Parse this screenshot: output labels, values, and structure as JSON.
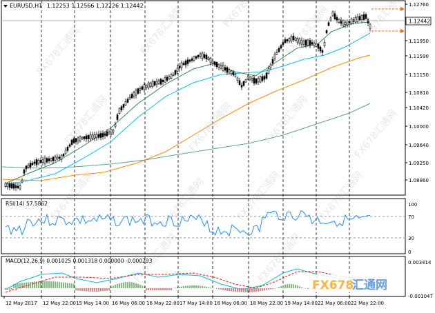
{
  "main_chart": {
    "symbol": "EURUSD,H1",
    "ohlc": "1.12253 1.12566 1.12226 1.12442",
    "current_price": "1.12442",
    "price_ticks": [
      "1.12760",
      "1.12270",
      "1.11950",
      "1.11590",
      "1.11150",
      "1.10810",
      "1.10420",
      "1.10000",
      "1.09640",
      "1.09250",
      "1.08860"
    ],
    "price_range": [
      1.085,
      1.129
    ]
  },
  "rsi": {
    "label": "RSI(14) 57.5862",
    "ticks": [
      "100",
      "70",
      "30",
      "0"
    ],
    "levels": [
      70,
      30
    ],
    "current": 57.5862
  },
  "macd": {
    "label": "MACD(12,26,9) 0.001025 0.001318 0.000000 -0.000293",
    "ticks": [
      "0.003414",
      "-0.001047"
    ]
  },
  "time_axis": {
    "labels": [
      "12 May 2017",
      "12 May 22:00",
      "15 May 14:00",
      "16 May 06:00",
      "16 May 22:00",
      "17 May 14:00",
      "18 May 06:00",
      "18 May 22:00",
      "19 May 14:00",
      "22 May 06:00",
      "22 May 22:00"
    ]
  },
  "watermark": {
    "text": "FX678汇通网",
    "logo": "FX678汇通网"
  },
  "colors": {
    "rsi_line": "#1e8fff",
    "ma_fast": "#2e8b57",
    "ma_mid": "#00bfff",
    "ma_slow": "#ff8c00",
    "ma_long": "#5f9ea0",
    "macd_pos": "#2e8b2e",
    "macd_neg": "#d23030",
    "signal_line": "#ff0000",
    "hline_orange": "#ff6a00"
  }
}
